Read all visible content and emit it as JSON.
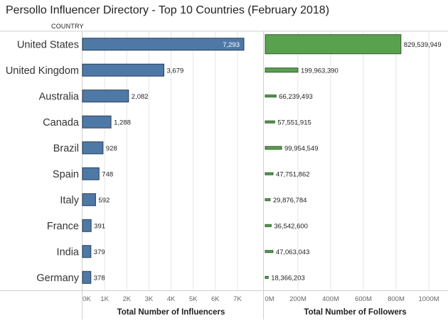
{
  "title": "Persollo Influencer Directory - Top 10 Countries (February 2018)",
  "row_header": "COUNTRY",
  "colors": {
    "influencers": "#4e79a7",
    "followers": "#59a14f",
    "gridline": "#e6e6e6",
    "border": "#cfcfcf"
  },
  "chart_data": [
    {
      "type": "bar",
      "orientation": "horizontal",
      "categories": [
        "United States",
        "United Kingdom",
        "Australia",
        "Canada",
        "Brazil",
        "Spain",
        "Italy",
        "France",
        "India",
        "Germany"
      ],
      "series": [
        {
          "values": [
            7293,
            3679,
            2082,
            1288,
            928,
            748,
            592,
            391,
            379,
            378
          ],
          "labels": [
            "7,293",
            "3,679",
            "2,082",
            "1,288",
            "928",
            "748",
            "592",
            "391",
            "379",
            "378"
          ]
        }
      ],
      "xlabel": "Total Number of Influencers",
      "xlim": [
        0,
        8000
      ],
      "ticks": [
        0,
        1000,
        2000,
        3000,
        4000,
        5000,
        6000,
        7000
      ],
      "tick_labels": [
        "0K",
        "1K",
        "2K",
        "3K",
        "4K",
        "5K",
        "6K",
        "7K"
      ],
      "grid": true
    },
    {
      "type": "bar",
      "orientation": "horizontal",
      "categories": [
        "United States",
        "United Kingdom",
        "Australia",
        "Canada",
        "Brazil",
        "Spain",
        "Italy",
        "France",
        "India",
        "Germany"
      ],
      "series": [
        {
          "values": [
            829539949,
            199963390,
            66239493,
            57551915,
            99954549,
            47751862,
            29876784,
            36542600,
            47063043,
            18366203
          ],
          "labels": [
            "829,539,949",
            "199,963,390",
            "66,239,493",
            "57,551,915",
            "99,954,549",
            "47,751,862",
            "29,876,784",
            "36,542,600",
            "47,063,043",
            "18,366,203"
          ]
        }
      ],
      "xlabel": "Total Number of Followers",
      "xlim": [
        0,
        1100000000
      ],
      "ticks": [
        0,
        200000000,
        400000000,
        600000000,
        800000000,
        1000000000
      ],
      "tick_labels": [
        "0M",
        "200M",
        "400M",
        "600M",
        "800M",
        "1000M"
      ],
      "grid": true
    }
  ]
}
